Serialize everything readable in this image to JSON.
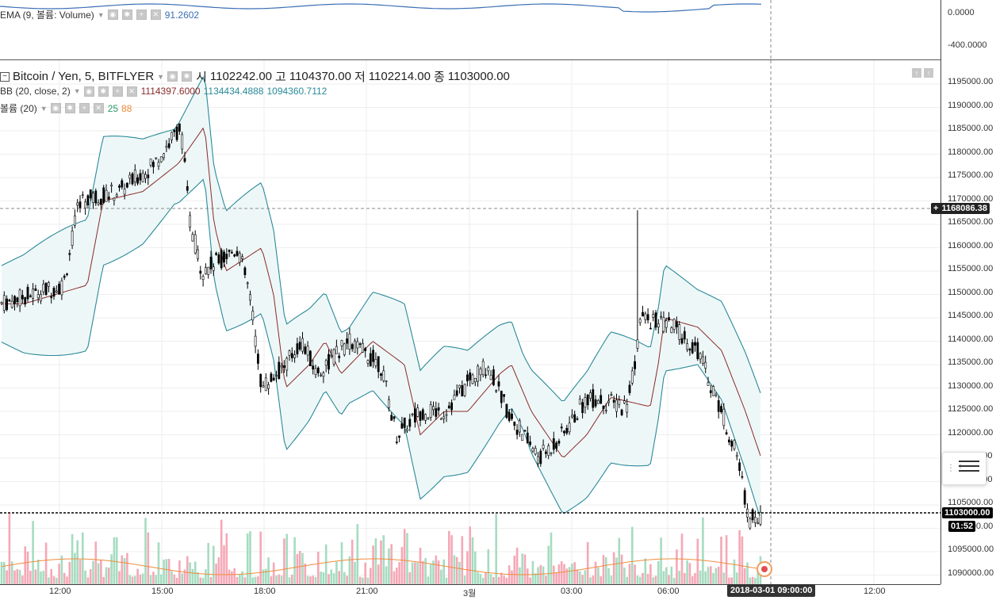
{
  "ema_pane": {
    "title": "EMA (9, 볼륨: Volume)",
    "value": "91.2602",
    "axis_labels": [
      "0.0000",
      "-400.0000"
    ]
  },
  "main": {
    "symbol": "Bitcoin / Yen, 5, BITFLYER",
    "open_label": "시",
    "open_value": "1102242.00",
    "high_label": "고",
    "high_value": "1104370.00",
    "low_label": "저",
    "low_value": "1102214.00",
    "close_label": "종",
    "close_value": "1103000.00",
    "bb_title": "BB (20, close, 2)",
    "bb_basis": "1114397.6000",
    "bb_upper": "1134434.4888",
    "bb_lower": "1094360.7112",
    "vol_title": "볼륨 (20)",
    "vol_value1": "25",
    "vol_value2": "88"
  },
  "price_axis": {
    "labels": [
      "1195000.00",
      "1190000.00",
      "1185000.00",
      "1180000.00",
      "1175000.00",
      "1170000.00",
      "1165000.00",
      "1160000.00",
      "1155000.00",
      "1150000.00",
      "1145000.00",
      "1140000.00",
      "1135000.00",
      "1130000.00",
      "1125000.00",
      "1120000.00",
      "1115000.00",
      "1110000.00",
      "1105000.00",
      "1100000.00",
      "1095000.00",
      "1090000.00"
    ],
    "crosshair_price": "1168086.38",
    "last_price": "1103000.00",
    "countdown": "01:52"
  },
  "time_axis": {
    "labels": [
      "12:00",
      "15:00",
      "18:00",
      "21:00",
      "3월",
      "03:00",
      "06:00",
      "12:00"
    ],
    "crosshair_time": "2018-03-01 09:00:00"
  },
  "colors": {
    "bb_basis": "#8b2a2a",
    "bb_band": "#2a8a9a",
    "bb_fill": "#eef7f7",
    "vol_up": "#a6dcc0",
    "vol_down": "#f5a8b6",
    "vol_ma": "#f08c3c",
    "ema_line": "#3b6fb5"
  },
  "icons": [
    "eye-icon",
    "settings-icon",
    "plus-icon",
    "close-icon",
    "panel-icon",
    "alert-mark-icon"
  ]
}
